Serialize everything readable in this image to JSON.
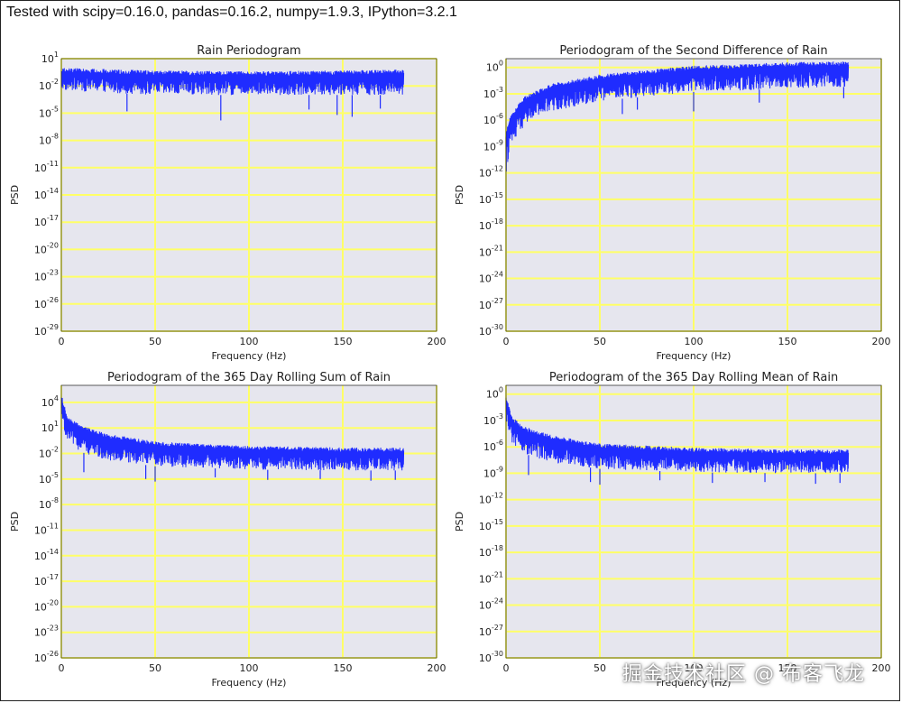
{
  "header": {
    "title": "Tested with scipy=0.16.0, pandas=0.16.2, numpy=1.9.3, IPython=3.2.1"
  },
  "watermark": {
    "text": "掘金技术社区 @ 布客飞龙"
  },
  "colors": {
    "plot_bg": "#e6e6ee",
    "grid": "#ffff66",
    "series": "#1f2cff"
  },
  "chart_data": [
    {
      "type": "line",
      "title": "Rain Periodogram",
      "xlabel": "Frequency (Hz)",
      "ylabel": "PSD",
      "xlim": [
        0,
        200
      ],
      "x_ticks": [
        0,
        50,
        100,
        150,
        200
      ],
      "ylim_exp": [
        -29,
        1
      ],
      "y_tick_exps": [
        1,
        -2,
        -5,
        -8,
        -11,
        -14,
        -17,
        -20,
        -23,
        -26,
        -29
      ],
      "y_scale": "log",
      "grid": true,
      "series": [
        {
          "x_range": [
            0,
            182.5
          ],
          "envelope": [
            {
              "x": 0,
              "upper_log10": 0.0,
              "lower_log10": -2.5
            },
            {
              "x": 50,
              "upper_log10": -0.3,
              "lower_log10": -3.0
            },
            {
              "x": 100,
              "upper_log10": -0.4,
              "lower_log10": -3.0
            },
            {
              "x": 150,
              "upper_log10": -0.3,
              "lower_log10": -3.0
            },
            {
              "x": 182.5,
              "upper_log10": -0.2,
              "lower_log10": -3.0
            }
          ],
          "dips": [
            {
              "x": 35,
              "log10": -4.8
            },
            {
              "x": 85,
              "log10": -5.8
            },
            {
              "x": 132,
              "log10": -4.6
            },
            {
              "x": 147,
              "log10": -5.2
            },
            {
              "x": 155,
              "log10": -5.4
            },
            {
              "x": 170,
              "log10": -4.5
            }
          ]
        }
      ]
    },
    {
      "type": "line",
      "title": "Periodogram of the Second Difference of Rain",
      "xlabel": "Frequency (Hz)",
      "ylabel": "PSD",
      "xlim": [
        0,
        200
      ],
      "x_ticks": [
        0,
        50,
        100,
        150,
        200
      ],
      "ylim_exp": [
        -30,
        1
      ],
      "y_tick_exps": [
        0,
        -3,
        -6,
        -9,
        -12,
        -15,
        -18,
        -21,
        -24,
        -27,
        -30
      ],
      "y_scale": "log",
      "grid": true,
      "series": [
        {
          "x_range": [
            0,
            182.5
          ],
          "envelope": [
            {
              "x": 0,
              "upper_log10": -7.5,
              "lower_log10": -12.0
            },
            {
              "x": 2,
              "upper_log10": -5.5,
              "lower_log10": -9.5
            },
            {
              "x": 10,
              "upper_log10": -3.2,
              "lower_log10": -6.5
            },
            {
              "x": 25,
              "upper_log10": -1.8,
              "lower_log10": -5.0
            },
            {
              "x": 50,
              "upper_log10": -0.8,
              "lower_log10": -3.8
            },
            {
              "x": 100,
              "upper_log10": 0.2,
              "lower_log10": -2.8
            },
            {
              "x": 150,
              "upper_log10": 0.6,
              "lower_log10": -2.4
            },
            {
              "x": 182.5,
              "upper_log10": 0.7,
              "lower_log10": -2.2
            }
          ],
          "dips": [
            {
              "x": 62,
              "log10": -5.3
            },
            {
              "x": 70,
              "log10": -4.8
            },
            {
              "x": 100,
              "log10": -5.0
            },
            {
              "x": 135,
              "log10": -4.0
            },
            {
              "x": 180,
              "log10": -3.5
            }
          ]
        }
      ]
    },
    {
      "type": "line",
      "title": "Periodogram of the 365 Day Rolling Sum of Rain",
      "xlabel": "Frequency (Hz)",
      "ylabel": "PSD",
      "xlim": [
        0,
        200
      ],
      "x_ticks": [
        0,
        50,
        100,
        150,
        200
      ],
      "ylim_exp": [
        -26,
        6
      ],
      "y_tick_exps": [
        4,
        1,
        -2,
        -5,
        -8,
        -11,
        -14,
        -17,
        -20,
        -23,
        -26
      ],
      "y_scale": "log",
      "grid": true,
      "series": [
        {
          "x_range": [
            0,
            182.5
          ],
          "envelope": [
            {
              "x": 0,
              "upper_log10": 5.0,
              "lower_log10": 2.0
            },
            {
              "x": 3,
              "upper_log10": 2.5,
              "lower_log10": -0.5
            },
            {
              "x": 10,
              "upper_log10": 1.3,
              "lower_log10": -1.8
            },
            {
              "x": 25,
              "upper_log10": 0.3,
              "lower_log10": -2.8
            },
            {
              "x": 50,
              "upper_log10": -0.6,
              "lower_log10": -3.5
            },
            {
              "x": 100,
              "upper_log10": -1.1,
              "lower_log10": -3.9
            },
            {
              "x": 150,
              "upper_log10": -1.3,
              "lower_log10": -4.0
            },
            {
              "x": 182.5,
              "upper_log10": -1.3,
              "lower_log10": -4.0
            }
          ],
          "dips": [
            {
              "x": 12,
              "log10": -4.2
            },
            {
              "x": 45,
              "log10": -5.0
            },
            {
              "x": 50,
              "log10": -5.3
            },
            {
              "x": 82,
              "log10": -4.8
            },
            {
              "x": 110,
              "log10": -5.1
            },
            {
              "x": 138,
              "log10": -5.0
            },
            {
              "x": 165,
              "log10": -5.2
            },
            {
              "x": 178,
              "log10": -5.1
            }
          ]
        }
      ]
    },
    {
      "type": "line",
      "title": "Periodogram of the 365 Day Rolling Mean of Rain",
      "xlabel": "Frequency (Hz)",
      "ylabel": "PSD",
      "xlim": [
        0,
        200
      ],
      "x_ticks": [
        0,
        50,
        100,
        150,
        200
      ],
      "ylim_exp": [
        -30,
        1
      ],
      "y_tick_exps": [
        0,
        -3,
        -6,
        -9,
        -12,
        -15,
        -18,
        -21,
        -24,
        -27,
        -30
      ],
      "y_scale": "log",
      "grid": true,
      "series": [
        {
          "x_range": [
            0,
            182.5
          ],
          "envelope": [
            {
              "x": 0,
              "upper_log10": 0.0,
              "lower_log10": -3.0
            },
            {
              "x": 3,
              "upper_log10": -2.5,
              "lower_log10": -5.5
            },
            {
              "x": 10,
              "upper_log10": -3.7,
              "lower_log10": -6.8
            },
            {
              "x": 25,
              "upper_log10": -4.7,
              "lower_log10": -7.8
            },
            {
              "x": 50,
              "upper_log10": -5.6,
              "lower_log10": -8.5
            },
            {
              "x": 100,
              "upper_log10": -6.1,
              "lower_log10": -8.9
            },
            {
              "x": 150,
              "upper_log10": -6.3,
              "lower_log10": -9.0
            },
            {
              "x": 182.5,
              "upper_log10": -6.3,
              "lower_log10": -9.0
            }
          ],
          "dips": [
            {
              "x": 12,
              "log10": -9.2
            },
            {
              "x": 45,
              "log10": -10.0
            },
            {
              "x": 50,
              "log10": -10.3
            },
            {
              "x": 82,
              "log10": -9.8
            },
            {
              "x": 110,
              "log10": -10.1
            },
            {
              "x": 138,
              "log10": -10.0
            },
            {
              "x": 165,
              "log10": -10.2
            },
            {
              "x": 178,
              "log10": -10.1
            }
          ]
        }
      ]
    }
  ]
}
